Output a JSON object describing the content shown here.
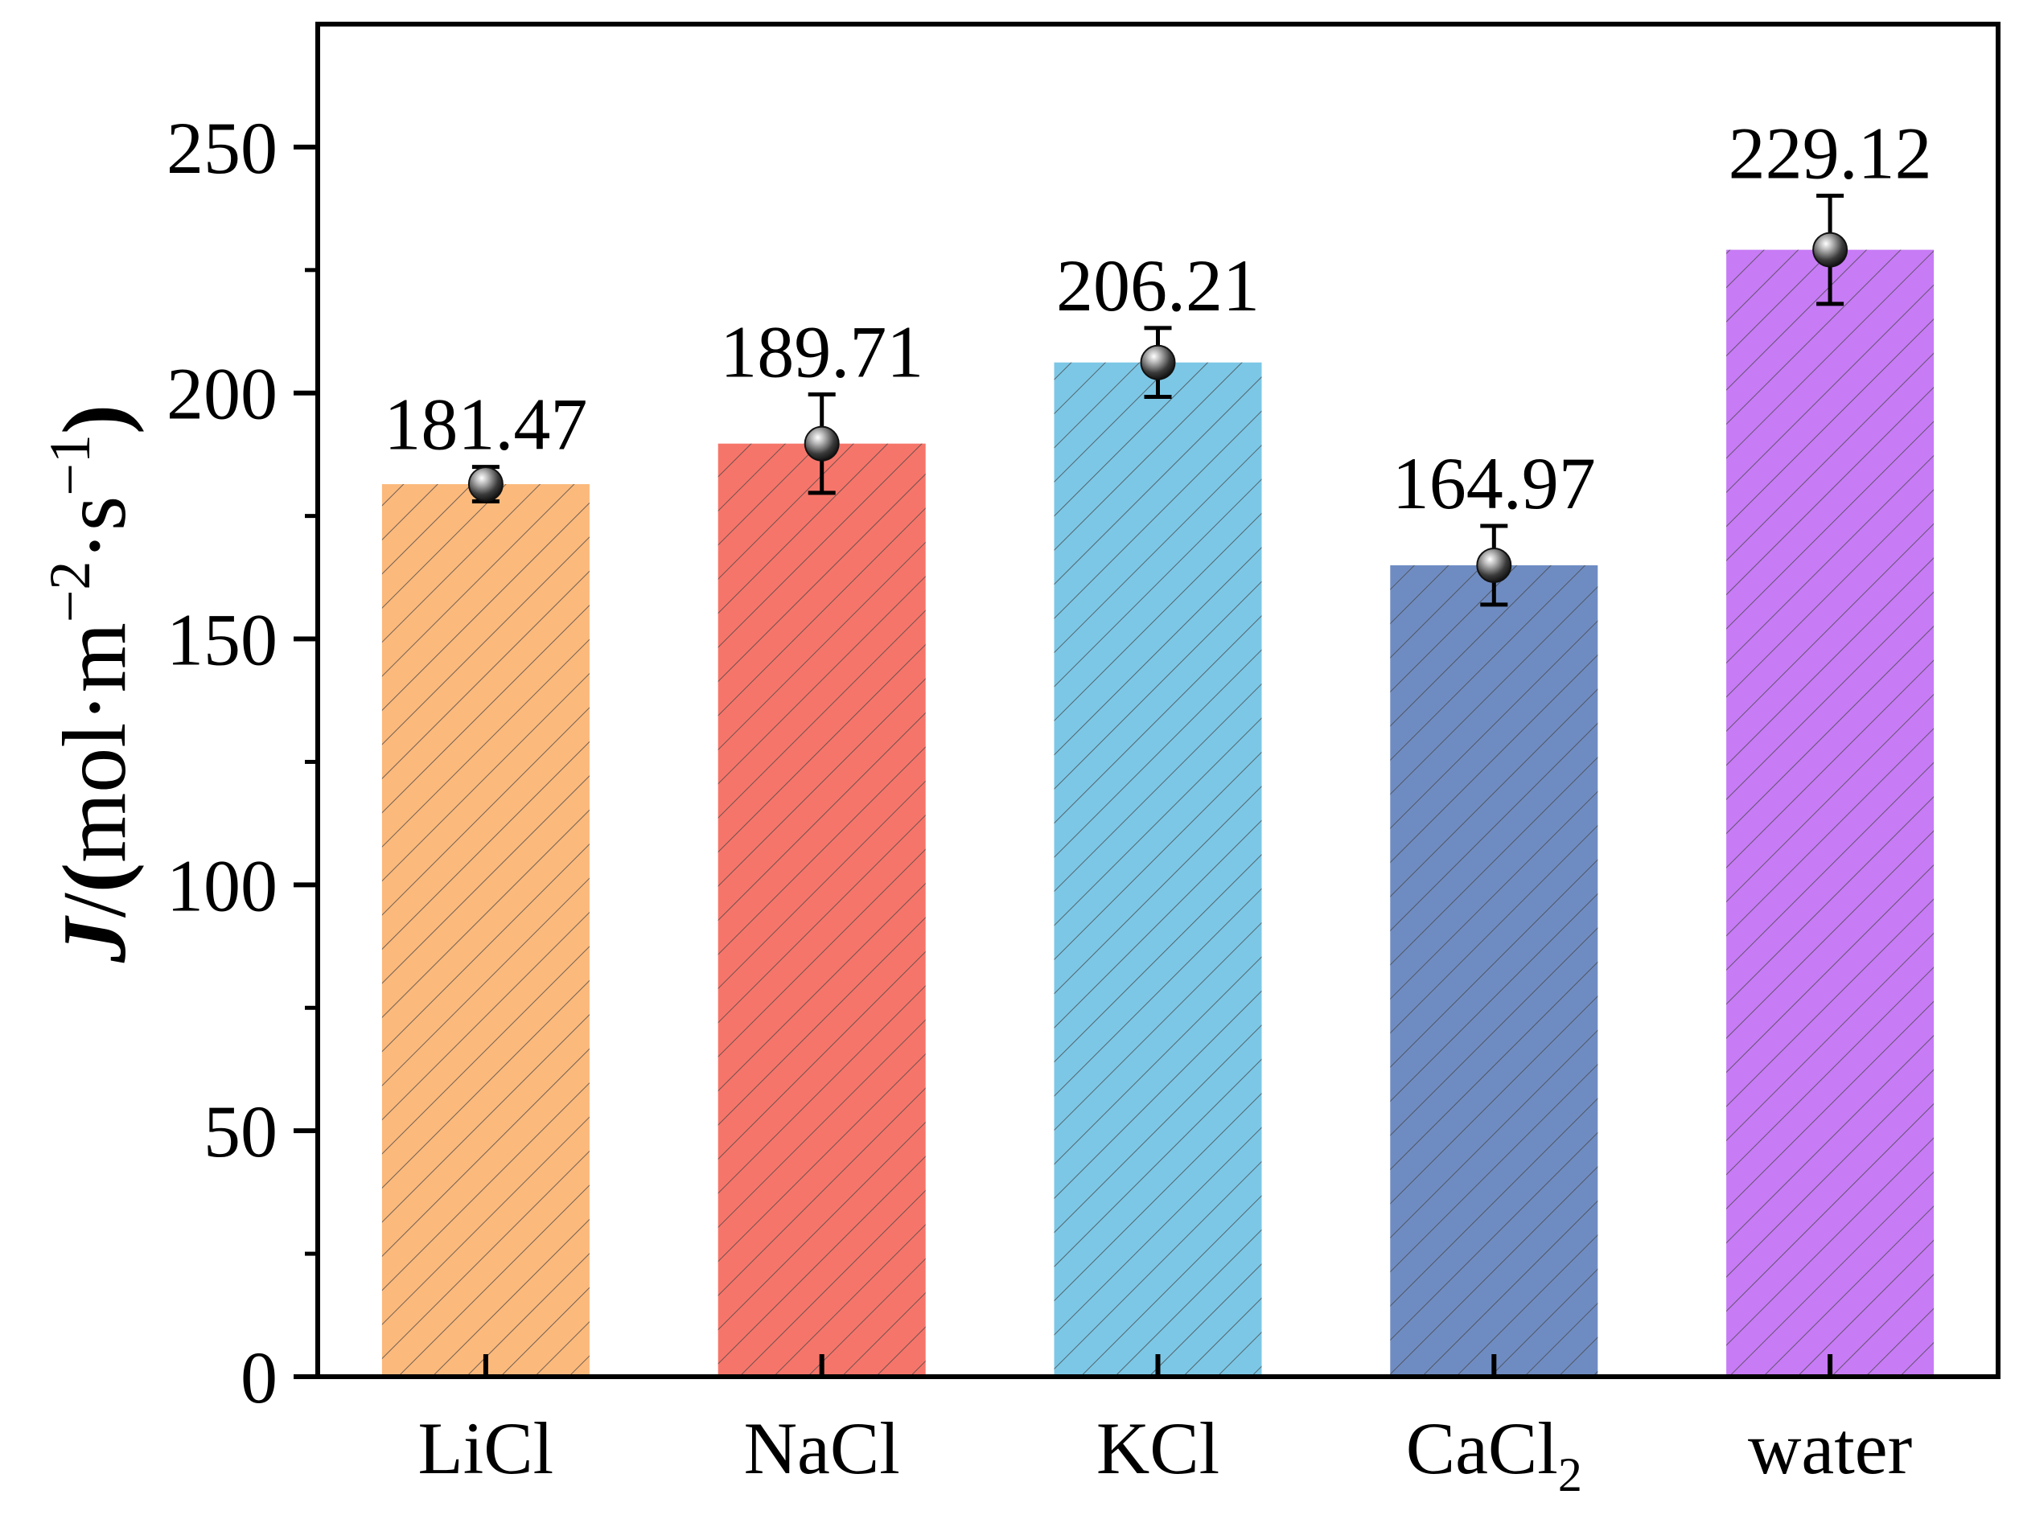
{
  "chart_data": {
    "type": "bar",
    "title": "",
    "xlabel": "",
    "ylabel": {
      "variable": "J",
      "slash": "/",
      "open": "(",
      "unit_mol": "mol·m",
      "sup1": "−2",
      "unit_s": "·s",
      "sup2": "−1",
      "close": ")"
    },
    "ylim": [
      0,
      275
    ],
    "yticks": [
      "0",
      "50",
      "100",
      "150",
      "200",
      "250"
    ],
    "categories": [
      {
        "label": "LiCl",
        "sub": ""
      },
      {
        "label": "NaCl",
        "sub": ""
      },
      {
        "label": "KCl",
        "sub": ""
      },
      {
        "label": "CaCl",
        "sub": "2"
      },
      {
        "label": "water",
        "sub": ""
      }
    ],
    "values": [
      181.47,
      189.71,
      206.21,
      164.97,
      229.12
    ],
    "value_labels": [
      "181.47",
      "189.71",
      "206.21",
      "164.97",
      "229.12"
    ],
    "errors": [
      3.5,
      10,
      7,
      8,
      11
    ],
    "colors": [
      "#FBB97C",
      "#F6756A",
      "#7CC7E6",
      "#6F8CC2",
      "#C77BF5"
    ],
    "hatch": "diagonal",
    "grid": false,
    "legend": "none"
  }
}
